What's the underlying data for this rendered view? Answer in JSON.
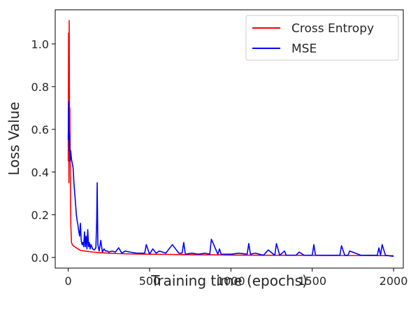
{
  "chart_data": {
    "type": "line",
    "xlabel": "Training time (epochs)",
    "ylabel": "Loss Value",
    "xlim": [
      -80,
      2060
    ],
    "ylim": [
      -0.05,
      1.16
    ],
    "xticks": [
      0,
      500,
      1000,
      1500,
      2000
    ],
    "yticks": [
      0.0,
      0.2,
      0.4,
      0.6,
      0.8,
      1.0
    ],
    "xtick_labels": [
      "0",
      "500",
      "1000",
      "1500",
      "2000"
    ],
    "ytick_labels": [
      "0.0",
      "0.2",
      "0.4",
      "0.6",
      "0.8",
      "1.0"
    ],
    "legend_position": "top-right",
    "grid": false,
    "series": [
      {
        "name": "Cross Entropy",
        "color": "#ff0000",
        "x": [
          0,
          2,
          4,
          6,
          8,
          10,
          12,
          14,
          16,
          20,
          25,
          30,
          40,
          50,
          60,
          70,
          80,
          100,
          120,
          150,
          200,
          250,
          300,
          350,
          400,
          500,
          600,
          700,
          800,
          900,
          1000,
          1200,
          1400,
          1600,
          1800,
          2000
        ],
        "y": [
          0.45,
          1.05,
          0.35,
          1.11,
          0.6,
          0.7,
          0.45,
          0.3,
          0.15,
          0.07,
          0.06,
          0.055,
          0.05,
          0.045,
          0.04,
          0.035,
          0.032,
          0.03,
          0.028,
          0.025,
          0.022,
          0.02,
          0.018,
          0.017,
          0.016,
          0.015,
          0.014,
          0.013,
          0.012,
          0.012,
          0.011,
          0.01,
          0.01,
          0.009,
          0.009,
          0.008
        ]
      },
      {
        "name": "MSE",
        "color": "#0000ff",
        "x": [
          0,
          3,
          6,
          9,
          12,
          15,
          20,
          25,
          30,
          35,
          40,
          45,
          50,
          55,
          60,
          65,
          70,
          75,
          80,
          85,
          90,
          95,
          100,
          105,
          110,
          115,
          120,
          125,
          130,
          135,
          140,
          150,
          160,
          170,
          175,
          178,
          182,
          190,
          200,
          210,
          220,
          230,
          240,
          250,
          270,
          290,
          310,
          330,
          350,
          380,
          420,
          470,
          480,
          500,
          520,
          540,
          560,
          600,
          640,
          680,
          700,
          710,
          720,
          760,
          800,
          840,
          870,
          880,
          920,
          930,
          940,
          1000,
          1050,
          1100,
          1110,
          1120,
          1150,
          1200,
          1230,
          1270,
          1280,
          1300,
          1330,
          1340,
          1400,
          1420,
          1450,
          1500,
          1510,
          1520,
          1550,
          1600,
          1670,
          1680,
          1700,
          1720,
          1730,
          1800,
          1850,
          1900,
          1910,
          1920,
          1930,
          1950,
          2000
        ],
        "y": [
          0.55,
          0.73,
          0.5,
          0.58,
          0.45,
          0.5,
          0.46,
          0.44,
          0.42,
          0.35,
          0.3,
          0.25,
          0.2,
          0.17,
          0.15,
          0.12,
          0.1,
          0.16,
          0.08,
          0.06,
          0.07,
          0.05,
          0.12,
          0.05,
          0.1,
          0.04,
          0.13,
          0.05,
          0.07,
          0.04,
          0.06,
          0.04,
          0.035,
          0.045,
          0.17,
          0.35,
          0.06,
          0.03,
          0.08,
          0.025,
          0.04,
          0.03,
          0.03,
          0.025,
          0.03,
          0.025,
          0.045,
          0.02,
          0.03,
          0.025,
          0.02,
          0.02,
          0.06,
          0.015,
          0.04,
          0.02,
          0.03,
          0.02,
          0.06,
          0.02,
          0.02,
          0.07,
          0.015,
          0.02,
          0.015,
          0.02,
          0.015,
          0.085,
          0.015,
          0.04,
          0.015,
          0.015,
          0.02,
          0.015,
          0.065,
          0.015,
          0.02,
          0.01,
          0.035,
          0.01,
          0.065,
          0.01,
          0.03,
          0.01,
          0.01,
          0.025,
          0.01,
          0.01,
          0.06,
          0.01,
          0.01,
          0.01,
          0.01,
          0.055,
          0.01,
          0.01,
          0.03,
          0.01,
          0.01,
          0.01,
          0.045,
          0.01,
          0.06,
          0.01,
          0.005
        ]
      }
    ]
  }
}
